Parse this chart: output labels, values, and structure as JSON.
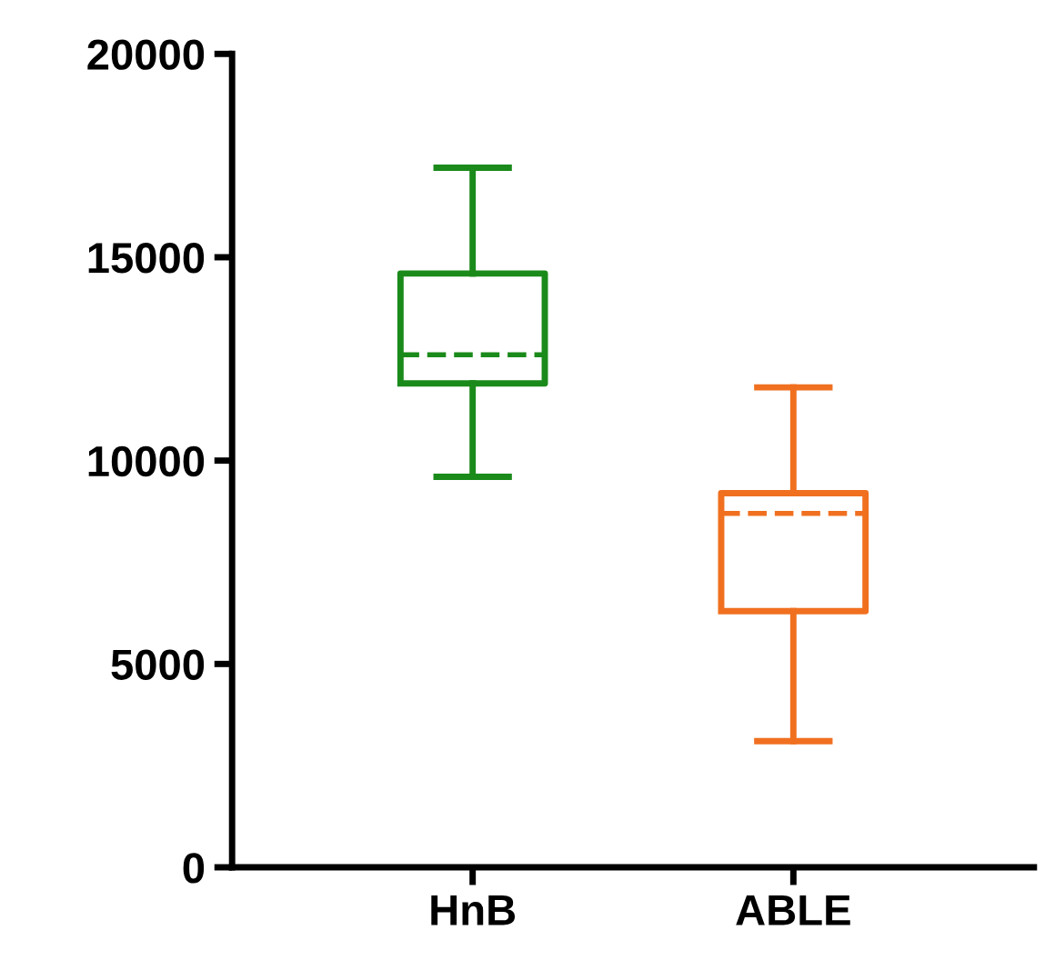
{
  "chart_data": {
    "type": "box",
    "categories": [
      "HnB",
      "ABLE"
    ],
    "boxes": [
      {
        "low": 9600,
        "q1": 11900,
        "median": 12600,
        "q3": 14600,
        "high": 17200
      },
      {
        "low": 3100,
        "q1": 6300,
        "median": 8700,
        "q3": 9200,
        "high": 11800
      }
    ],
    "colors": [
      "#1a8a1a",
      "#f07020"
    ],
    "ylim": [
      0,
      20000
    ],
    "yticks": [
      0,
      5000,
      10000,
      15000,
      20000
    ],
    "grid": false,
    "legend": false
  }
}
